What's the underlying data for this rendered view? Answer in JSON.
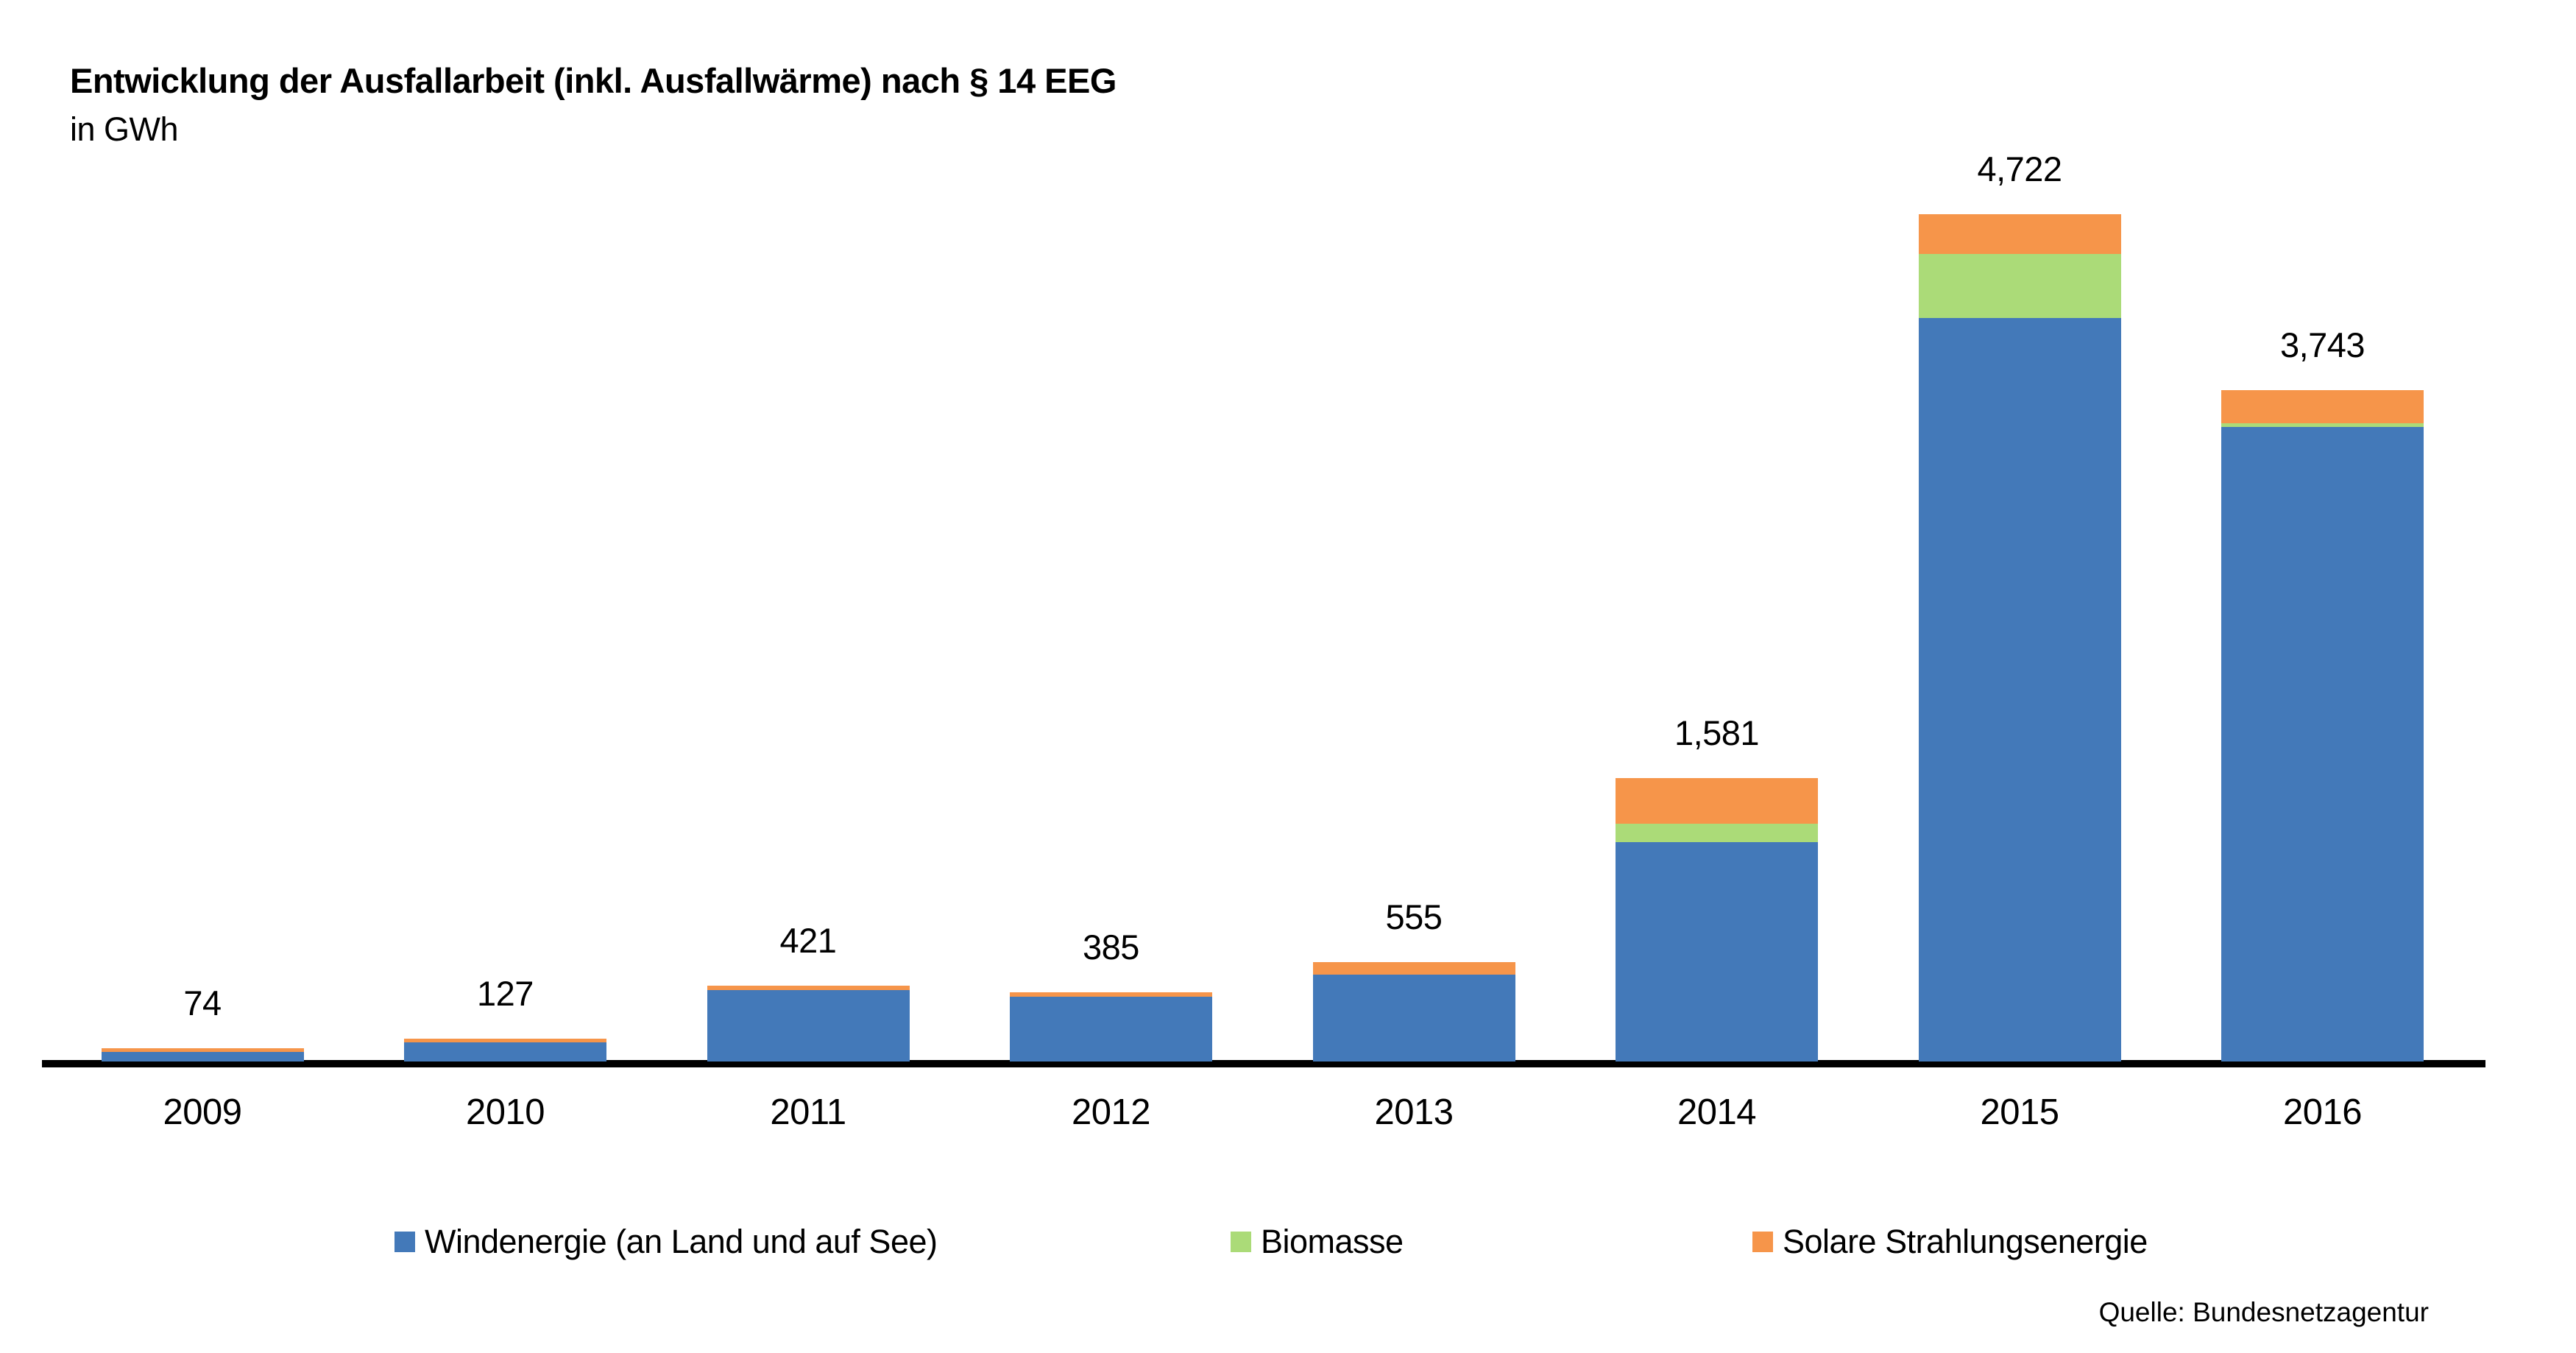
{
  "footer": {
    "source": "Quelle: Bundesnetzagentur"
  },
  "chart_data": {
    "type": "bar",
    "stacked": true,
    "title": "Entwicklung der Ausfallarbeit (inkl. Ausfallwärme) nach § 14 EEG",
    "subtitle": "in GWh",
    "unit": "GWh",
    "grid": false,
    "y_axis_visible": false,
    "legend_position": "bottom",
    "categories": [
      "2009",
      "2010",
      "2011",
      "2012",
      "2013",
      "2014",
      "2015",
      "2016"
    ],
    "series": [
      {
        "name": "Windenergie (an Land und auf See)",
        "color": "#4379B9",
        "values": [
          54,
          106,
          400,
          363,
          485,
          1221,
          4143,
          3536
        ]
      },
      {
        "name": "Biomasse",
        "color": "#ABDB78",
        "values": [
          0,
          0,
          0,
          0,
          0,
          106,
          357,
          20
        ]
      },
      {
        "name": "Solare Strahlungsenergie",
        "color": "#F6954A",
        "values": [
          20,
          21,
          21,
          22,
          70,
          254,
          222,
          187
        ]
      }
    ],
    "totals": [
      74,
      127,
      421,
      385,
      555,
      1581,
      4722,
      3743
    ],
    "total_labels": [
      "74",
      "127",
      "421",
      "385",
      "555",
      "1,581",
      "4,722",
      "3,743"
    ],
    "axis_color": "#000000",
    "label_color": "#000000"
  }
}
